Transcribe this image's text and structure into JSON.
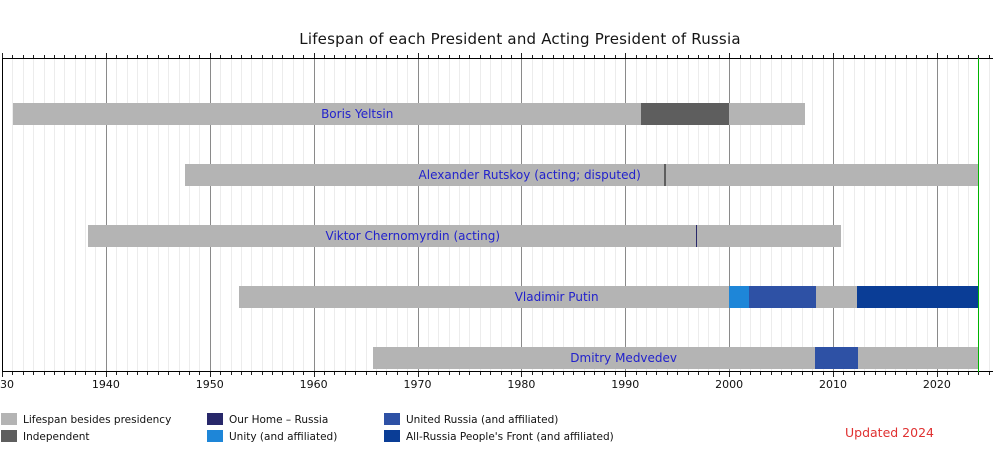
{
  "title": "Lifespan of each President and Acting President of Russia",
  "updated_note": "Updated 2024",
  "colors": {
    "lifespan": "#b4b4b4",
    "independent": "#5e5e5e",
    "our_home_russia": "#28286a",
    "unity": "#1e86d8",
    "united_russia": "#2e51a5",
    "people_front": "#0a3d96",
    "now_line": "#00b300",
    "bar_label_text": "#2222cc",
    "updated_note_text": "#e03131",
    "major_grid": "#8a8a8a",
    "minor_grid": "#ececec"
  },
  "chart_data": {
    "type": "bar",
    "subtype": "timeline-gantt",
    "title": "Lifespan of each President and Acting President of Russia",
    "xlabel": "",
    "ylabel": "",
    "grid": true,
    "x_axis": {
      "min": 1930,
      "max": 2025.4,
      "minor_tick_step": 1,
      "major_tick_step": 10,
      "tick_labels": [
        {
          "year": 1930,
          "label": "30"
        },
        {
          "year": 1940,
          "label": "1940"
        },
        {
          "year": 1950,
          "label": "1950"
        },
        {
          "year": 1960,
          "label": "1960"
        },
        {
          "year": 1970,
          "label": "1970"
        },
        {
          "year": 1980,
          "label": "1980"
        },
        {
          "year": 1990,
          "label": "1990"
        },
        {
          "year": 2000,
          "label": "2000"
        },
        {
          "year": 2010,
          "label": "2010"
        },
        {
          "year": 2020,
          "label": "2020"
        }
      ]
    },
    "now_line_year": 2024.0,
    "rows": [
      {
        "label": "Boris Yeltsin",
        "segments": [
          {
            "start": 1931.1,
            "end": 1991.5,
            "party": "lifespan"
          },
          {
            "start": 1991.5,
            "end": 2000.0,
            "party": "independent"
          },
          {
            "start": 2000.0,
            "end": 2007.3,
            "party": "lifespan"
          }
        ]
      },
      {
        "label": "Alexander Rutskoy (acting; disputed)",
        "segments": [
          {
            "start": 1947.6,
            "end": 1993.7,
            "party": "lifespan"
          },
          {
            "start": 1993.7,
            "end": 1993.9,
            "party": "independent"
          },
          {
            "start": 1993.9,
            "end": 2024.0,
            "party": "lifespan"
          }
        ]
      },
      {
        "label": "Viktor Chernomyrdin (acting)",
        "segments": [
          {
            "start": 1938.3,
            "end": 1996.8,
            "party": "lifespan"
          },
          {
            "start": 1996.8,
            "end": 1996.9,
            "party": "our_home_russia"
          },
          {
            "start": 1996.9,
            "end": 2010.8,
            "party": "lifespan"
          }
        ]
      },
      {
        "label": "Vladimir Putin",
        "segments": [
          {
            "start": 1952.8,
            "end": 2000.0,
            "party": "lifespan"
          },
          {
            "start": 2000.0,
            "end": 2001.9,
            "party": "unity"
          },
          {
            "start": 2001.9,
            "end": 2008.4,
            "party": "united_russia"
          },
          {
            "start": 2008.4,
            "end": 2012.3,
            "party": "lifespan"
          },
          {
            "start": 2012.3,
            "end": 2024.0,
            "party": "people_front"
          }
        ]
      },
      {
        "label": "Dmitry Medvedev",
        "segments": [
          {
            "start": 1965.7,
            "end": 2008.3,
            "party": "lifespan"
          },
          {
            "start": 2008.3,
            "end": 2012.4,
            "party": "united_russia"
          },
          {
            "start": 2012.4,
            "end": 2024.0,
            "party": "lifespan"
          }
        ]
      }
    ]
  },
  "legend": {
    "columns": [
      {
        "items": [
          {
            "party": "lifespan",
            "label": "Lifespan besides presidency"
          },
          {
            "party": "independent",
            "label": "Independent"
          }
        ]
      },
      {
        "items": [
          {
            "party": "our_home_russia",
            "label": "Our Home – Russia"
          },
          {
            "party": "unity",
            "label": "Unity (and affiliated)"
          }
        ]
      },
      {
        "items": [
          {
            "party": "united_russia",
            "label": "United Russia (and affiliated)"
          },
          {
            "party": "people_front",
            "label": "All-Russia People's Front (and affiliated)"
          }
        ]
      }
    ]
  }
}
